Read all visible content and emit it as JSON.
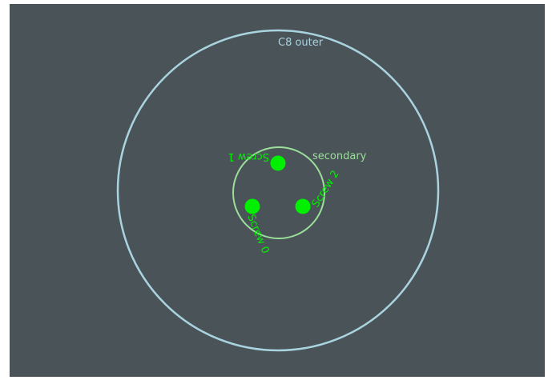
{
  "outer_circle": {
    "label": "C8 outer",
    "color": "#a9d3df"
  },
  "secondary_circle": {
    "label": "secondary",
    "color": "#9bdf9b"
  },
  "screws": {
    "color": "#00f000",
    "items": [
      {
        "label": "Screw 0"
      },
      {
        "label": "Screw 1"
      },
      {
        "label": "Screw 2"
      }
    ]
  },
  "background_color": "#4a5458"
}
